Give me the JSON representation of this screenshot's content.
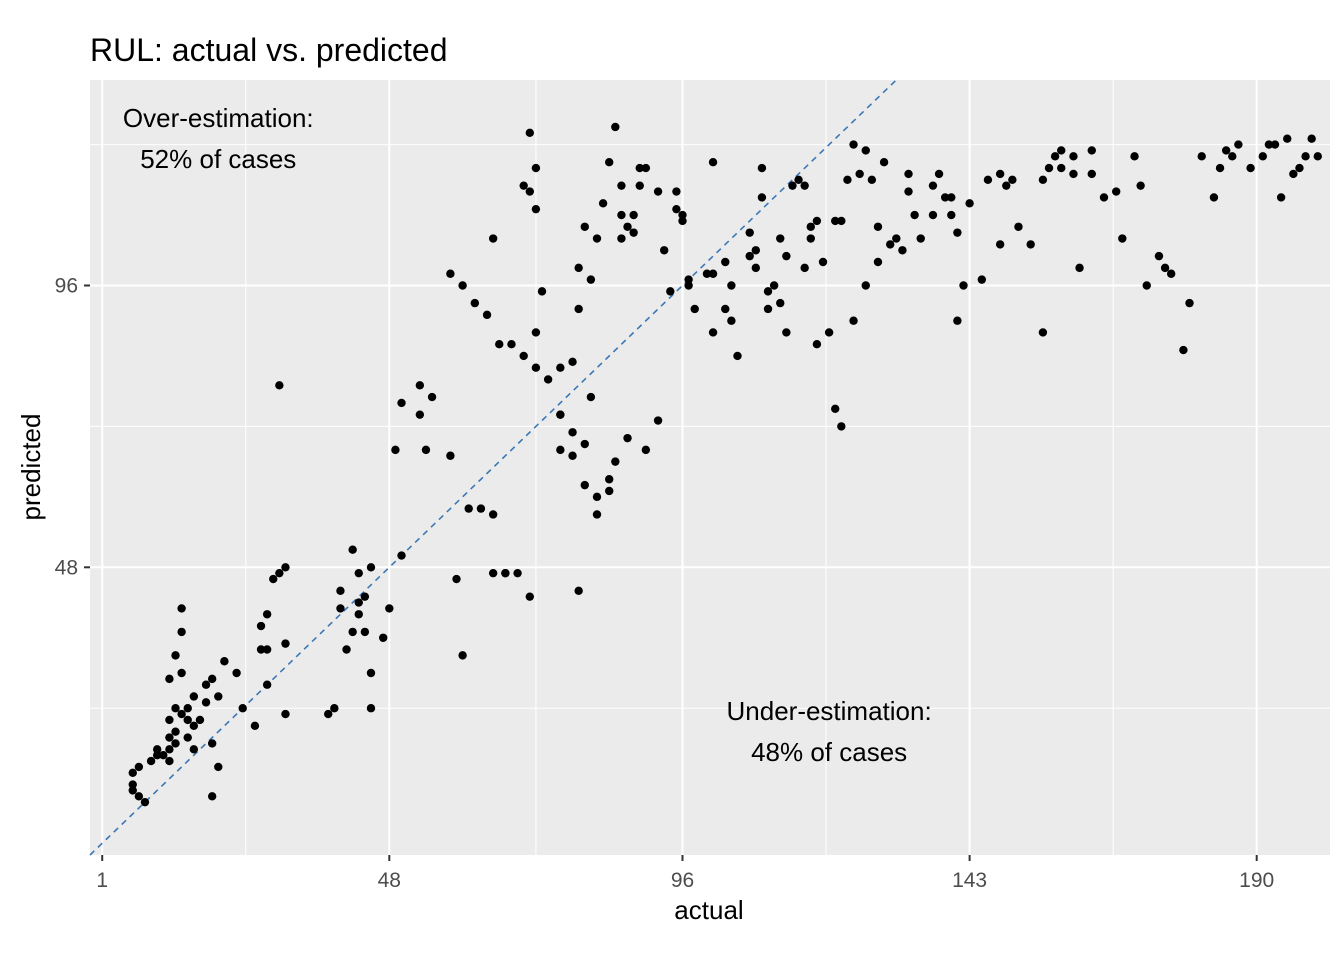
{
  "chart_data": {
    "type": "scatter",
    "title": "RUL: actual vs. predicted",
    "xlabel": "actual",
    "ylabel": "predicted",
    "xlim": [
      -1,
      202
    ],
    "ylim": [
      -1,
      131
    ],
    "x_ticks": [
      1,
      48,
      96,
      143,
      190
    ],
    "y_ticks": [
      48,
      96
    ],
    "grid": true,
    "reference_line": {
      "type": "y = x",
      "style": "dashed",
      "color": "#3a78b5"
    },
    "point_color": "#000000",
    "panel_background": "#ebebeb",
    "annotations": [
      {
        "lines": [
          "Over-estimation:",
          "52% of cases"
        ],
        "x": 20,
        "y": 123
      },
      {
        "lines": [
          "Under-estimation:",
          "48% of cases"
        ],
        "x": 120,
        "y": 22
      }
    ],
    "points": [
      [
        6,
        13
      ],
      [
        7,
        14
      ],
      [
        6,
        11
      ],
      [
        6,
        10
      ],
      [
        8,
        8
      ],
      [
        7,
        9
      ],
      [
        9,
        15
      ],
      [
        10,
        16
      ],
      [
        10,
        17
      ],
      [
        11,
        16
      ],
      [
        12,
        15
      ],
      [
        12,
        17
      ],
      [
        13,
        18
      ],
      [
        12,
        19
      ],
      [
        13,
        20
      ],
      [
        12,
        22
      ],
      [
        13,
        24
      ],
      [
        14,
        23
      ],
      [
        15,
        24
      ],
      [
        15,
        22
      ],
      [
        15,
        19
      ],
      [
        16,
        17
      ],
      [
        16,
        21
      ],
      [
        17,
        22
      ],
      [
        16,
        26
      ],
      [
        18,
        25
      ],
      [
        18,
        28
      ],
      [
        19,
        18
      ],
      [
        19,
        9
      ],
      [
        20,
        14
      ],
      [
        20,
        26
      ],
      [
        19,
        29
      ],
      [
        21,
        32
      ],
      [
        12,
        29
      ],
      [
        14,
        30
      ],
      [
        13,
        33
      ],
      [
        14,
        37
      ],
      [
        14,
        41
      ],
      [
        23,
        30
      ],
      [
        24,
        24
      ],
      [
        26,
        21
      ],
      [
        27,
        34
      ],
      [
        27,
        38
      ],
      [
        28,
        40
      ],
      [
        28,
        28
      ],
      [
        29,
        46
      ],
      [
        30,
        47
      ],
      [
        31,
        35
      ],
      [
        28,
        34
      ],
      [
        30,
        79
      ],
      [
        31,
        23
      ],
      [
        31,
        48
      ],
      [
        38,
        23
      ],
      [
        39,
        24
      ],
      [
        41,
        34
      ],
      [
        40,
        41
      ],
      [
        42,
        37
      ],
      [
        43,
        42
      ],
      [
        40,
        44
      ],
      [
        43,
        47
      ],
      [
        42,
        51
      ],
      [
        44,
        43
      ],
      [
        43,
        40
      ],
      [
        44,
        37
      ],
      [
        45,
        30
      ],
      [
        45,
        48
      ],
      [
        45,
        24
      ],
      [
        47,
        36
      ],
      [
        48,
        41
      ],
      [
        50,
        50
      ],
      [
        49,
        68
      ],
      [
        50,
        76
      ],
      [
        53,
        74
      ],
      [
        53,
        79
      ],
      [
        55,
        77
      ],
      [
        54,
        68
      ],
      [
        58,
        67
      ],
      [
        61,
        58
      ],
      [
        63,
        58
      ],
      [
        65,
        47
      ],
      [
        67,
        47
      ],
      [
        69,
        47
      ],
      [
        60,
        33
      ],
      [
        65,
        57
      ],
      [
        67,
        47
      ],
      [
        59,
        46
      ],
      [
        71,
        43
      ],
      [
        76,
        68
      ],
      [
        78,
        67
      ],
      [
        80,
        62
      ],
      [
        82,
        57
      ],
      [
        79,
        44
      ],
      [
        88,
        108
      ],
      [
        84,
        61
      ],
      [
        76,
        74
      ],
      [
        81,
        77
      ],
      [
        65,
        104
      ],
      [
        70,
        113
      ],
      [
        71,
        122
      ],
      [
        71,
        112
      ],
      [
        72,
        116
      ],
      [
        72,
        109
      ],
      [
        73,
        95
      ],
      [
        72,
        88
      ],
      [
        76,
        82
      ],
      [
        78,
        83
      ],
      [
        79,
        92
      ],
      [
        79,
        99
      ],
      [
        80,
        106
      ],
      [
        81,
        97
      ],
      [
        82,
        104
      ],
      [
        83,
        110
      ],
      [
        84,
        117
      ],
      [
        85,
        123
      ],
      [
        86,
        113
      ],
      [
        86,
        104
      ],
      [
        87,
        106
      ],
      [
        86,
        108
      ],
      [
        88,
        105
      ],
      [
        89,
        113
      ],
      [
        89,
        116
      ],
      [
        90,
        116
      ],
      [
        92,
        112
      ],
      [
        93,
        102
      ],
      [
        95,
        112
      ],
      [
        96,
        108
      ],
      [
        94,
        95
      ],
      [
        95,
        109
      ],
      [
        96,
        107
      ],
      [
        97,
        96
      ],
      [
        100,
        98
      ],
      [
        103,
        100
      ],
      [
        101,
        117
      ],
      [
        101,
        98
      ],
      [
        101,
        88
      ],
      [
        105,
        84
      ],
      [
        104,
        90
      ],
      [
        104,
        96
      ],
      [
        108,
        99
      ],
      [
        107,
        105
      ],
      [
        108,
        102
      ],
      [
        109,
        111
      ],
      [
        109,
        116
      ],
      [
        110,
        92
      ],
      [
        111,
        96
      ],
      [
        112,
        93
      ],
      [
        112,
        104
      ],
      [
        113,
        101
      ],
      [
        114,
        113
      ],
      [
        115,
        114
      ],
      [
        116,
        113
      ],
      [
        117,
        106
      ],
      [
        118,
        107
      ],
      [
        116,
        99
      ],
      [
        117,
        104
      ],
      [
        119,
        100
      ],
      [
        120,
        88
      ],
      [
        121,
        75
      ],
      [
        122,
        107
      ],
      [
        121,
        107
      ],
      [
        122,
        72
      ],
      [
        123,
        114
      ],
      [
        124,
        120
      ],
      [
        125,
        115
      ],
      [
        126,
        119
      ],
      [
        127,
        114
      ],
      [
        128,
        106
      ],
      [
        129,
        117
      ],
      [
        130,
        103
      ],
      [
        131,
        104
      ],
      [
        132,
        102
      ],
      [
        133,
        115
      ],
      [
        134,
        108
      ],
      [
        135,
        104
      ],
      [
        137,
        108
      ],
      [
        139,
        111
      ],
      [
        140,
        108
      ],
      [
        141,
        105
      ],
      [
        141,
        90
      ],
      [
        142,
        96
      ],
      [
        145,
        97
      ],
      [
        148,
        103
      ],
      [
        149,
        113
      ],
      [
        151,
        106
      ],
      [
        153,
        103
      ],
      [
        155,
        114
      ],
      [
        157,
        118
      ],
      [
        158,
        119
      ],
      [
        160,
        118
      ],
      [
        161,
        99
      ],
      [
        163,
        119
      ],
      [
        163,
        115
      ],
      [
        165,
        111
      ],
      [
        167,
        112
      ],
      [
        168,
        104
      ],
      [
        170,
        118
      ],
      [
        171,
        113
      ],
      [
        172,
        96
      ],
      [
        174,
        101
      ],
      [
        175,
        99
      ],
      [
        176,
        98
      ],
      [
        178,
        85
      ],
      [
        179,
        93
      ],
      [
        181,
        118
      ],
      [
        183,
        111
      ],
      [
        184,
        116
      ],
      [
        185,
        119
      ],
      [
        186,
        118
      ],
      [
        187,
        120
      ],
      [
        189,
        116
      ],
      [
        191,
        118
      ],
      [
        192,
        120
      ],
      [
        194,
        111
      ],
      [
        196,
        115
      ],
      [
        197,
        116
      ],
      [
        195,
        121
      ],
      [
        193,
        120
      ],
      [
        198,
        118
      ],
      [
        199,
        121
      ],
      [
        200,
        118
      ],
      [
        160,
        115
      ],
      [
        158,
        116
      ],
      [
        156,
        116
      ],
      [
        155,
        88
      ],
      [
        150,
        114
      ],
      [
        148,
        115
      ],
      [
        146,
        114
      ],
      [
        143,
        110
      ],
      [
        140,
        111
      ],
      [
        138,
        115
      ],
      [
        137,
        113
      ],
      [
        133,
        112
      ],
      [
        128,
        100
      ],
      [
        126,
        96
      ],
      [
        124,
        90
      ],
      [
        118,
        86
      ],
      [
        113,
        88
      ],
      [
        110,
        95
      ],
      [
        107,
        101
      ],
      [
        103,
        92
      ],
      [
        98,
        92
      ],
      [
        97,
        97
      ],
      [
        92,
        73
      ],
      [
        90,
        68
      ],
      [
        87,
        70
      ],
      [
        85,
        66
      ],
      [
        84,
        63
      ],
      [
        82,
        60
      ],
      [
        80,
        69
      ],
      [
        78,
        71
      ],
      [
        76,
        74
      ],
      [
        74,
        80
      ],
      [
        72,
        82
      ],
      [
        70,
        84
      ],
      [
        68,
        86
      ],
      [
        66,
        86
      ],
      [
        64,
        91
      ],
      [
        62,
        93
      ],
      [
        60,
        96
      ],
      [
        58,
        98
      ]
    ]
  }
}
